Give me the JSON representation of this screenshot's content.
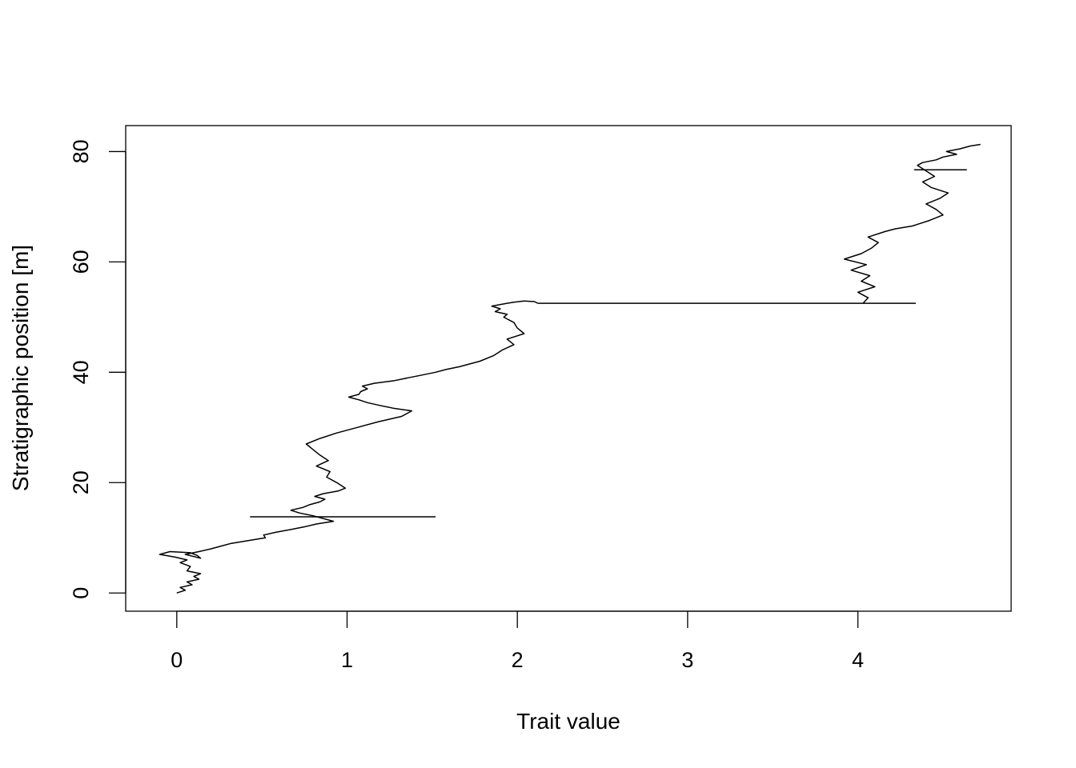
{
  "chart_data": {
    "type": "line",
    "title": "",
    "xlabel": "Trait value",
    "ylabel": "Stratigraphic position [m]",
    "xlim": [
      -0.3,
      4.9
    ],
    "ylim": [
      -3.3,
      84.7
    ],
    "x_ticks": [
      0,
      1,
      2,
      3,
      4
    ],
    "y_ticks": [
      0,
      20,
      40,
      60,
      80
    ],
    "x_tick_labels": [
      "0",
      "1",
      "2",
      "3",
      "4"
    ],
    "y_tick_labels": [
      "0",
      "20",
      "40",
      "60",
      "80"
    ],
    "grid": false,
    "legend": "none",
    "line_color": "#000000",
    "series": [
      {
        "x": [
          0.0,
          0.05,
          0.02,
          0.09,
          0.06,
          0.13,
          0.1,
          0.14,
          0.06,
          0.08,
          0.02,
          0.06,
          -0.01,
          -0.1,
          -0.04,
          0.08,
          0.12,
          0.14,
          0.05,
          0.13,
          0.2,
          0.26,
          0.32,
          0.42,
          0.52,
          0.51,
          0.58,
          0.67,
          0.75,
          0.82,
          0.92,
          0.86,
          0.8,
          0.72,
          0.67,
          0.74,
          0.78,
          0.84,
          0.87,
          0.81,
          0.86,
          0.95,
          0.99,
          0.94,
          0.88,
          0.9,
          0.82,
          0.89,
          0.84,
          0.8,
          0.76,
          0.84,
          0.94,
          1.06,
          1.18,
          1.32,
          1.38,
          1.27,
          1.19,
          1.12,
          1.07,
          1.01,
          1.07,
          1.08,
          1.12,
          1.09,
          1.16,
          1.28,
          1.36,
          1.44,
          1.52,
          1.58,
          1.66,
          1.78,
          1.86,
          1.91,
          1.98,
          1.94,
          2.04,
          2.0,
          1.98,
          1.92,
          1.94,
          1.87,
          1.9,
          1.85,
          1.94,
          1.98,
          2.04,
          2.1,
          2.12
        ],
        "y": [
          0.0,
          0.5,
          1.0,
          1.5,
          2.0,
          2.5,
          3.0,
          3.5,
          4.0,
          4.8,
          5.5,
          6.0,
          6.5,
          7.0,
          7.5,
          7.3,
          6.8,
          6.3,
          7.0,
          7.5,
          8.0,
          8.5,
          9.0,
          9.5,
          10.0,
          10.5,
          11.0,
          11.5,
          12.0,
          12.5,
          13.0,
          13.5,
          14.0,
          14.5,
          15.0,
          15.5,
          16.0,
          16.5,
          17.0,
          17.5,
          18.0,
          18.5,
          19.0,
          20.0,
          21.0,
          22.0,
          23.0,
          24.0,
          25.0,
          26.0,
          27.0,
          28.0,
          29.0,
          30.0,
          31.0,
          32.0,
          33.0,
          33.5,
          34.0,
          34.5,
          35.0,
          35.5,
          36.0,
          36.5,
          37.0,
          37.5,
          38.0,
          38.5,
          39.0,
          39.5,
          40.0,
          40.5,
          41.0,
          42.0,
          43.0,
          44.0,
          45.0,
          46.0,
          47.0,
          48.0,
          49.0,
          50.0,
          50.5,
          51.0,
          51.5,
          52.0,
          52.5,
          52.7,
          52.9,
          52.8,
          52.5
        ]
      },
      {
        "x": [
          2.12,
          4.34
        ],
        "y": [
          52.5,
          52.5
        ]
      },
      {
        "x": [
          0.43,
          1.52
        ],
        "y": [
          13.8,
          13.8
        ]
      },
      {
        "x": [
          4.03,
          4.06,
          4.0,
          4.1,
          4.02,
          4.07,
          3.96,
          4.05,
          3.92,
          4.02,
          4.08,
          4.12,
          4.06,
          4.16,
          4.22,
          4.32,
          4.42,
          4.5,
          4.46,
          4.4,
          4.48,
          4.53,
          4.43,
          4.38,
          4.45,
          4.4,
          4.35,
          4.38,
          4.46,
          4.5,
          4.58,
          4.52,
          4.6,
          4.66,
          4.72
        ],
        "y": [
          52.5,
          53.5,
          54.5,
          55.5,
          56.5,
          57.5,
          58.5,
          59.5,
          60.5,
          61.5,
          62.5,
          63.5,
          64.5,
          65.5,
          66.0,
          66.5,
          67.5,
          68.5,
          69.5,
          70.5,
          71.5,
          72.5,
          73.5,
          74.5,
          75.5,
          76.5,
          77.5,
          78.0,
          78.5,
          79.0,
          79.5,
          80.0,
          80.5,
          81.0,
          81.3
        ]
      },
      {
        "x": [
          4.33,
          4.64
        ],
        "y": [
          76.7,
          76.7
        ]
      }
    ]
  }
}
